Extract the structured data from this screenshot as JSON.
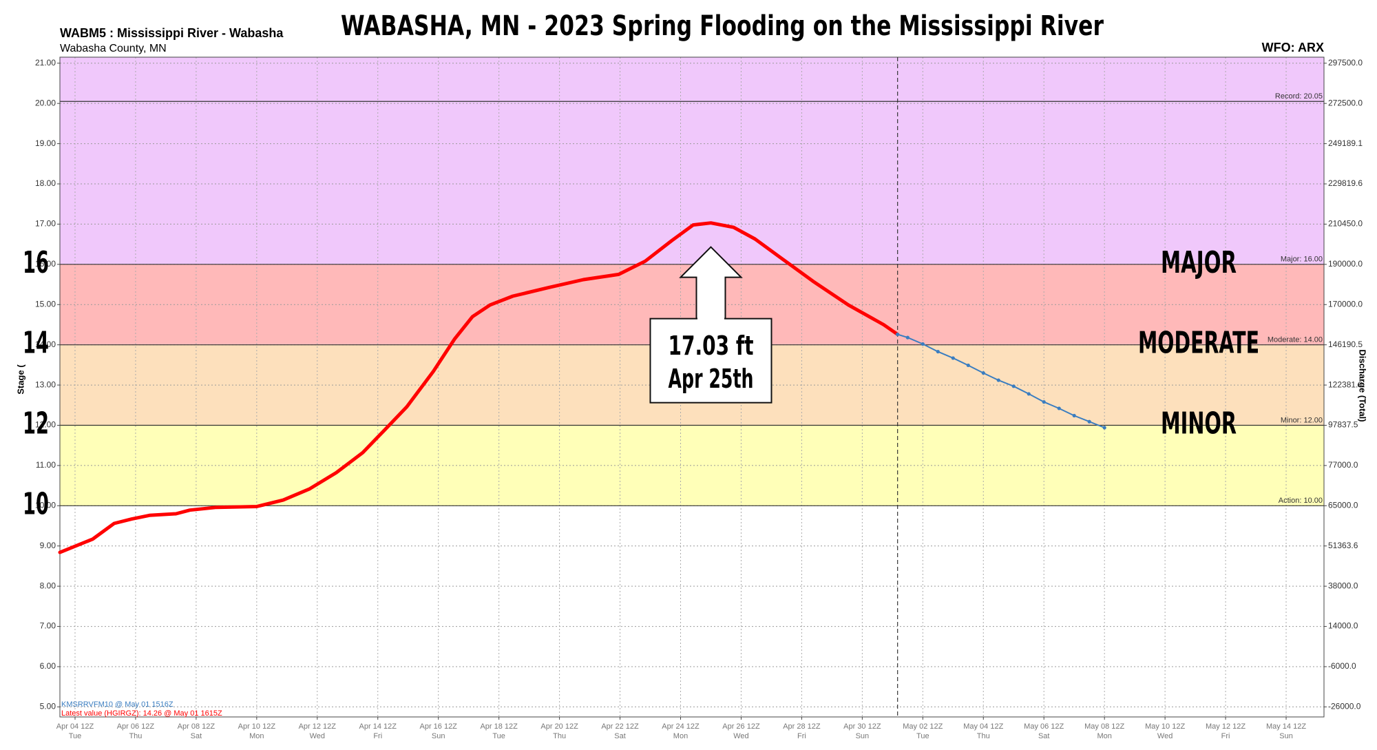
{
  "chart_data": {
    "type": "line",
    "title": "WABASHA, MN - 2023 Spring Flooding on the Mississippi River",
    "station": "WABM5 : Mississippi River - Wabasha",
    "county": "Wabasha County, MN",
    "office": "WFO: ARX",
    "ylabel": "Stage (",
    "y2label": "Discharge (Total)",
    "xlim": [
      "Apr 04 00Z",
      "May 15 18Z"
    ],
    "xticks": [
      "Apr 04 12Z",
      "Apr 06 12Z",
      "Apr 08 12Z",
      "Apr 10 12Z",
      "Apr 12 12Z",
      "Apr 14 12Z",
      "Apr 16 12Z",
      "Apr 18 12Z",
      "Apr 20 12Z",
      "Apr 22 12Z",
      "Apr 24 12Z",
      "Apr 26 12Z",
      "Apr 28 12Z",
      "Apr 30 12Z",
      "May 02 12Z",
      "May 04 12Z",
      "May 06 12Z",
      "May 08 12Z",
      "May 10 12Z",
      "May 12 12Z",
      "May 14 12Z"
    ],
    "xtick_days": [
      "Tue",
      "Thu",
      "Sat",
      "Mon",
      "Wed",
      "Fri",
      "Sun",
      "Tue",
      "Thu",
      "Sat",
      "Mon",
      "Wed",
      "Fri",
      "Sun",
      "Tue",
      "Thu",
      "Sat",
      "Mon",
      "Wed",
      "Fri",
      "Sun"
    ],
    "ylim": [
      4.75,
      21.15
    ],
    "yticks": [
      {
        "value": 5,
        "label": "5.00"
      },
      {
        "value": 6,
        "label": "6.00"
      },
      {
        "value": 7,
        "label": "7.00"
      },
      {
        "value": 8,
        "label": "8.00"
      },
      {
        "value": 9,
        "label": "9.00"
      },
      {
        "value": 10,
        "label": "10.00"
      },
      {
        "value": 11,
        "label": "11.00"
      },
      {
        "value": 12,
        "label": "12.00"
      },
      {
        "value": 13,
        "label": "13.00"
      },
      {
        "value": 14,
        "label": "14.00"
      },
      {
        "value": 15,
        "label": "15.00"
      },
      {
        "value": 16,
        "label": "16.00"
      },
      {
        "value": 17,
        "label": "17.00"
      },
      {
        "value": 18,
        "label": "18.00"
      },
      {
        "value": 19,
        "label": "19.00"
      },
      {
        "value": 20,
        "label": "20.00"
      },
      {
        "value": 21,
        "label": "21.00"
      }
    ],
    "y2ticks": [
      {
        "value": -26000,
        "label": "-26000.0"
      },
      {
        "value": -6000,
        "label": "-6000.0"
      },
      {
        "value": 14000,
        "label": "14000.0"
      },
      {
        "value": 38000,
        "label": "38000.0"
      },
      {
        "value": 51363.6,
        "label": "51363.6"
      },
      {
        "value": 65000,
        "label": "65000.0"
      },
      {
        "value": 77000,
        "label": "77000.0"
      },
      {
        "value": 97837.5,
        "label": "97837.5"
      },
      {
        "value": 122381,
        "label": "122381.0"
      },
      {
        "value": 146190.5,
        "label": "146190.5"
      },
      {
        "value": 170000,
        "label": "170000.0"
      },
      {
        "value": 190000,
        "label": "190000.0"
      },
      {
        "value": 210450,
        "label": "210450.0"
      },
      {
        "value": 229819.6,
        "label": "229819.6"
      },
      {
        "value": 249189.1,
        "label": "249189.1"
      },
      {
        "value": 272500,
        "label": "272500.0"
      },
      {
        "value": 297500,
        "label": "297500.0"
      }
    ],
    "stage_marks": [
      10,
      12,
      14,
      16
    ],
    "thresholds": [
      {
        "value": 10,
        "label": "Action: 10.00",
        "color": "#ffffb8"
      },
      {
        "value": 12,
        "label": "Minor: 12.00",
        "color": "#fde0bc",
        "category": "MINOR"
      },
      {
        "value": 14,
        "label": "Moderate: 14.00",
        "color": "#ffb9b9",
        "category": "MODERATE"
      },
      {
        "value": 16,
        "label": "Major: 16.00",
        "color": "#f0c8fb",
        "category": "MAJOR"
      },
      {
        "value": 20.05,
        "label": "Record: 20.05"
      }
    ],
    "now_line": "May 01 16Z",
    "series": [
      {
        "color": "#ff0000",
        "x": [
          "Apr 04 00Z",
          "Apr 05 02Z",
          "Apr 05 19Z",
          "Apr 06 09Z",
          "Apr 06 23Z",
          "Apr 07 20Z",
          "Apr 08 07Z",
          "Apr 09 04Z",
          "Apr 10 12Z",
          "Apr 11 09Z",
          "Apr 12 06Z",
          "Apr 13 03Z",
          "Apr 14 00Z",
          "Apr 14 17Z",
          "Apr 15 11Z",
          "Apr 16 08Z",
          "Apr 17 01Z",
          "Apr 17 15Z",
          "Apr 18 05Z",
          "Apr 18 23Z",
          "Apr 20 03Z",
          "Apr 21 07Z",
          "Apr 22 11Z",
          "Apr 23 08Z",
          "Apr 24 05Z",
          "Apr 24 22Z",
          "Apr 25 12Z",
          "Apr 26 06Z",
          "Apr 26 23Z",
          "Apr 27 20Z",
          "Apr 28 21Z",
          "Apr 30 01Z",
          "May 01 05Z",
          "May 01 16Z"
        ],
        "values": [
          8.84,
          9.17,
          9.56,
          9.67,
          9.76,
          9.8,
          9.89,
          9.96,
          9.98,
          10.14,
          10.42,
          10.82,
          11.32,
          11.87,
          12.46,
          13.34,
          14.15,
          14.7,
          14.99,
          15.21,
          15.42,
          15.62,
          15.75,
          16.08,
          16.59,
          16.98,
          17.03,
          16.92,
          16.63,
          16.15,
          15.58,
          14.99,
          14.5,
          14.26
        ]
      },
      {
        "color": "#3a7dc0",
        "x": [
          "May 01 16Z",
          "May 02 00Z",
          "May 02 12Z",
          "May 03 00Z",
          "May 03 12Z",
          "May 04 00Z",
          "May 04 12Z",
          "May 05 00Z",
          "May 05 12Z",
          "May 06 00Z",
          "May 06 12Z",
          "May 07 00Z",
          "May 07 12Z",
          "May 08 00Z",
          "May 08 12Z"
        ],
        "values": [
          14.26,
          14.18,
          14.02,
          13.83,
          13.67,
          13.49,
          13.3,
          13.12,
          12.97,
          12.78,
          12.58,
          12.42,
          12.24,
          12.09,
          11.94
        ]
      }
    ],
    "annotation": [
      "17.03 ft",
      "Apr 25th"
    ],
    "notes": [
      {
        "text": "KMSRRVFM10 @ May 01 1516Z",
        "color": "#3a7dc0"
      },
      {
        "text": "Latest value (HGIRGZ): 14.26 @ May 01 1615Z",
        "color": "#ff0000"
      }
    ]
  }
}
